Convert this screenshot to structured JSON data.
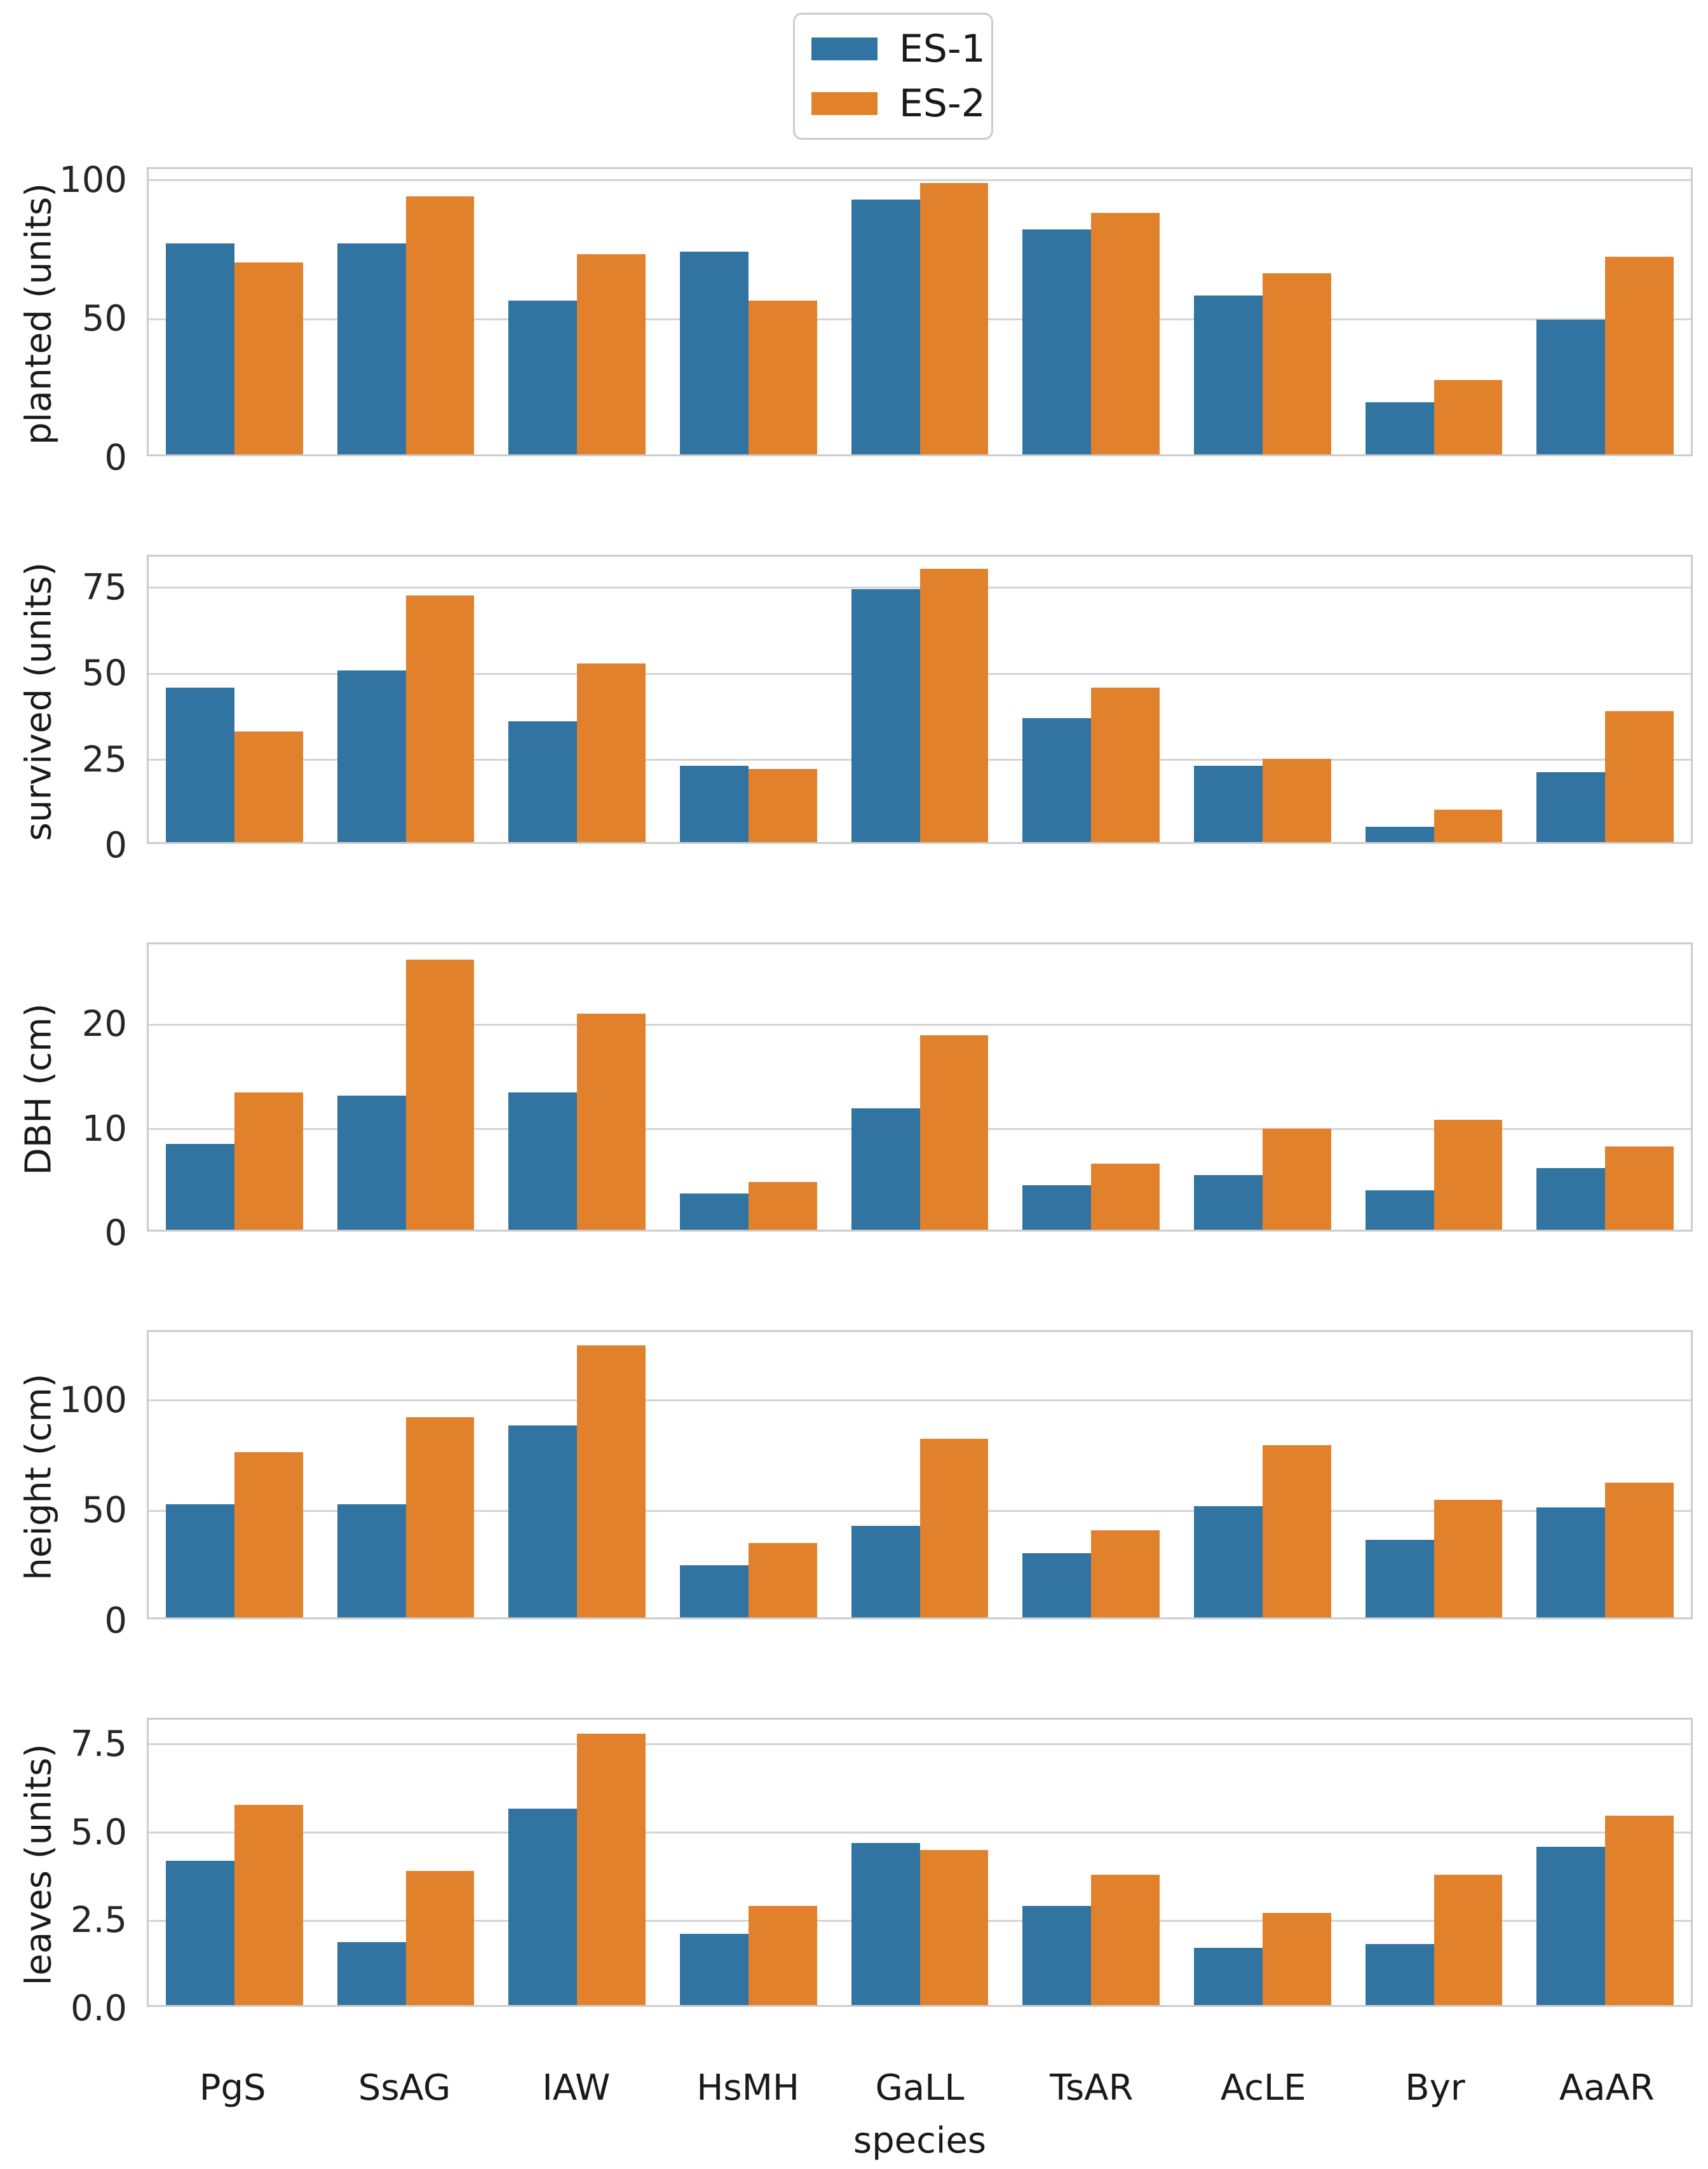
{
  "legend": {
    "items": [
      {
        "label": "ES-1",
        "color": "#3274a1"
      },
      {
        "label": "ES-2",
        "color": "#e1812c"
      }
    ]
  },
  "colors": {
    "accent_blue": "#3274a1",
    "accent_orange": "#e1812c",
    "grid": "#d4d4d4",
    "spine": "#cccccc",
    "text": "#1a1a1a"
  },
  "chart_data": {
    "type": "bar",
    "grouped": true,
    "grid": true,
    "legend_position": "top-center",
    "xlabel": "species",
    "categories": [
      "PgS",
      "SsAG",
      "IAW",
      "HsMH",
      "GaLL",
      "TsAR",
      "AcLE",
      "Byr",
      "AaAR"
    ],
    "series_names": [
      "ES-1",
      "ES-2"
    ],
    "panels": [
      {
        "ylabel": "planted (units)",
        "yticks": [
          "0",
          "50",
          "100"
        ],
        "ylim": [
          0,
          104
        ],
        "series": [
          {
            "name": "ES-1",
            "values": [
              77,
              77,
              56,
              74,
              93,
              82,
              58,
              19,
              49
            ]
          },
          {
            "name": "ES-2",
            "values": [
              70,
              94,
              73,
              56,
              99,
              88,
              66,
              27,
              72
            ]
          }
        ]
      },
      {
        "ylabel": "survived (units)",
        "yticks": [
          "0",
          "25",
          "50",
          "75"
        ],
        "ylim": [
          0,
          84
        ],
        "series": [
          {
            "name": "ES-1",
            "values": [
              45.5,
              50.5,
              35.5,
              22.5,
              74.5,
              36.5,
              22.5,
              4.5,
              20.5
            ]
          },
          {
            "name": "ES-2",
            "values": [
              32.5,
              72.5,
              52.5,
              21.5,
              80.5,
              45.5,
              24.5,
              9.5,
              38.5
            ]
          }
        ]
      },
      {
        "ylabel": "DBH (cm)",
        "yticks": [
          "0",
          "10",
          "20"
        ],
        "ylim": [
          0,
          27.7
        ],
        "series": [
          {
            "name": "ES-1",
            "values": [
              8.3,
              13.0,
              13.3,
              3.5,
              11.8,
              4.3,
              5.3,
              3.8,
              6.0
            ]
          },
          {
            "name": "ES-2",
            "values": [
              13.3,
              26.2,
              21.0,
              4.6,
              18.9,
              6.4,
              9.8,
              10.7,
              8.1
            ]
          }
        ]
      },
      {
        "ylabel": "height (cm)",
        "yticks": [
          "0",
          "50",
          "100"
        ],
        "ylim": [
          0,
          131
        ],
        "series": [
          {
            "name": "ES-1",
            "values": [
              52,
              52,
              88,
              24,
              42,
              29.5,
              51,
              35.5,
              50.5
            ]
          },
          {
            "name": "ES-2",
            "values": [
              76,
              92,
              125,
              34,
              82,
              40,
              79,
              54,
              62
            ]
          }
        ]
      },
      {
        "ylabel": "leaves (units)",
        "yticks": [
          "0.0",
          "2.5",
          "5.0",
          "7.5"
        ],
        "ylim": [
          0,
          8.2
        ],
        "series": [
          {
            "name": "ES-1",
            "values": [
              4.15,
              1.8,
              5.65,
              2.05,
              4.65,
              2.85,
              1.65,
              1.75,
              4.55
            ]
          },
          {
            "name": "ES-2",
            "values": [
              5.75,
              3.85,
              7.8,
              2.85,
              4.45,
              3.75,
              2.65,
              3.75,
              5.45
            ]
          }
        ]
      }
    ]
  }
}
